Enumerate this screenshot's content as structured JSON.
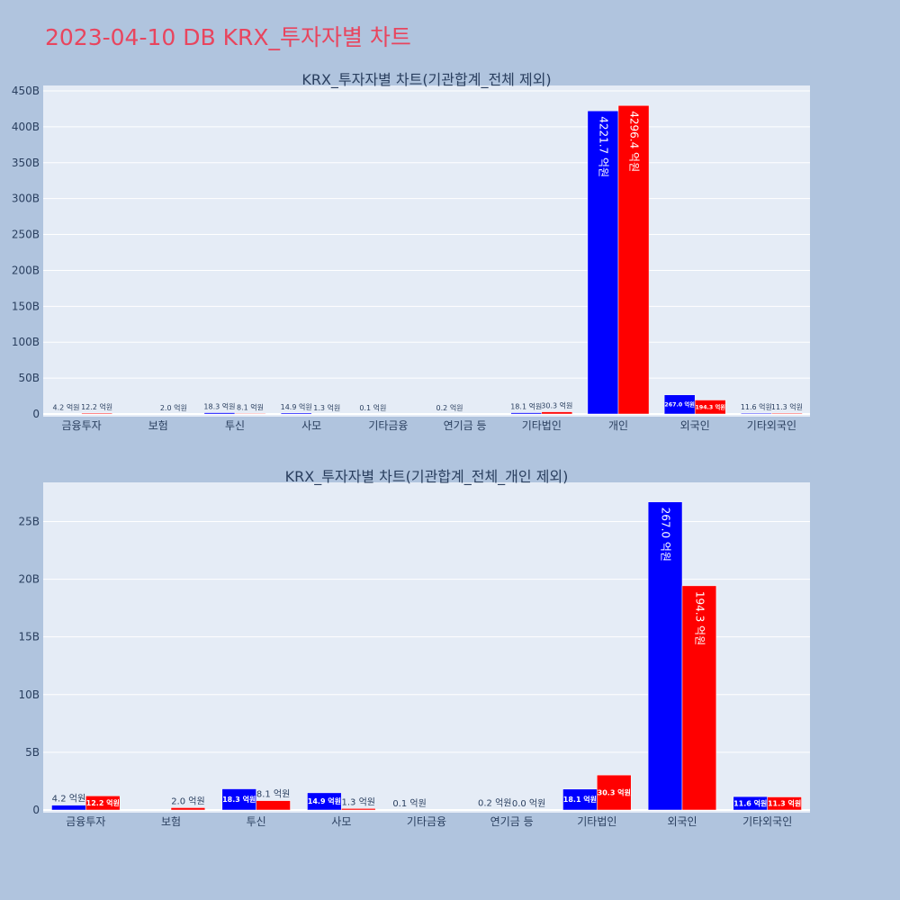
{
  "page": {
    "title": "2023-04-10 DB KRX_투자자별 차트"
  },
  "chart_data": [
    {
      "type": "bar",
      "title": "KRX_투자자별 차트(기관합계_전체 제외)",
      "categories": [
        "금융투자",
        "보험",
        "투신",
        "사모",
        "기타금융",
        "연기금 등",
        "기타법인",
        "개인",
        "외국인",
        "기타외국인"
      ],
      "ylim": [
        0,
        450
      ],
      "y_ticks": [
        0,
        50,
        100,
        150,
        200,
        250,
        300,
        350,
        400,
        450
      ],
      "y_tick_labels": [
        "0",
        "50B",
        "100B",
        "150B",
        "200B",
        "250B",
        "300B",
        "350B",
        "400B",
        "450B"
      ],
      "grid": true,
      "series": [
        {
          "color": "#0000ff",
          "values": [
            0.42,
            0,
            1.83,
            1.49,
            0.01,
            0.02,
            1.81,
            422.17,
            26.7,
            1.16
          ],
          "labels": [
            "4.2 억원",
            "",
            "18.3 억원",
            "14.9 억원",
            "0.1 억원",
            "0.2 억원",
            "18.1 억원",
            "4221.7 억원",
            "267.0 억원",
            "11.6 억원"
          ]
        },
        {
          "color": "#ff0000",
          "values": [
            1.22,
            0.2,
            0.81,
            0.13,
            0,
            0,
            3.03,
            429.64,
            19.43,
            1.13
          ],
          "labels": [
            "12.2 억원",
            "2.0 억원",
            "8.1 억원",
            "1.3 억원",
            "",
            "",
            "30.3 억원",
            "4296.4 억원",
            "194.3 억원",
            "11.3 억원"
          ]
        }
      ]
    },
    {
      "type": "bar",
      "title": "KRX_투자자별 차트(기관합계_전체_개인 제외)",
      "categories": [
        "금융투자",
        "보험",
        "투신",
        "사모",
        "기타금융",
        "연기금 등",
        "기타법인",
        "외국인",
        "기타외국인"
      ],
      "ylim": [
        0,
        28
      ],
      "y_ticks": [
        0,
        5,
        10,
        15,
        20,
        25
      ],
      "y_tick_labels": [
        "0",
        "5B",
        "10B",
        "15B",
        "20B",
        "25B"
      ],
      "grid": true,
      "series": [
        {
          "color": "#0000ff",
          "values": [
            0.42,
            0,
            1.83,
            1.49,
            0.01,
            0.02,
            1.81,
            26.7,
            1.16
          ],
          "labels": [
            "4.2 억원",
            "",
            "18.3 억원",
            "14.9 억원",
            "0.1 억원",
            "0.2 억원",
            "18.1 억원",
            "267.0 억원",
            "11.6 억원"
          ]
        },
        {
          "color": "#ff0000",
          "values": [
            1.22,
            0.2,
            0.81,
            0.13,
            0,
            0.0,
            3.03,
            19.43,
            1.13
          ],
          "labels": [
            "12.2 억원",
            "2.0 억원",
            "8.1 억원",
            "1.3 억원",
            "",
            "0.0 억원",
            "30.3 억원",
            "194.3 억원",
            "11.3 억원"
          ]
        }
      ]
    }
  ]
}
